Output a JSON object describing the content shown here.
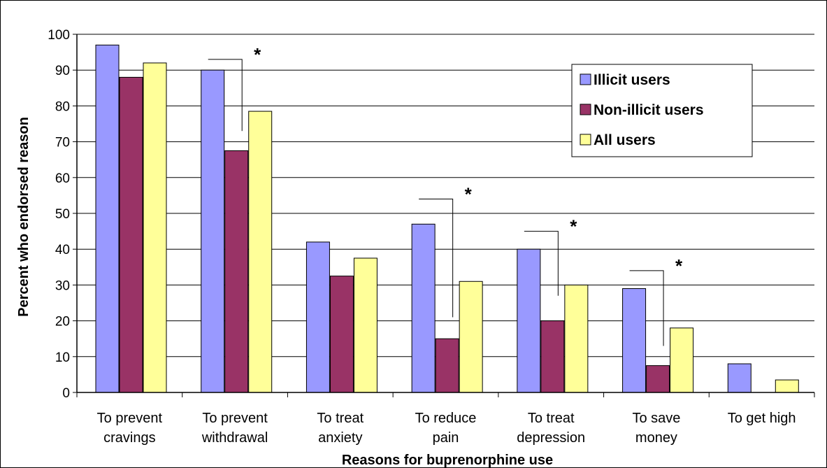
{
  "chart_data": {
    "type": "bar",
    "title": "",
    "xlabel": "Reasons for buprenorphine use",
    "ylabel": "Percent who endorsed reason",
    "ylim": [
      0,
      100
    ],
    "yticks": [
      "0",
      "10",
      "20",
      "30",
      "40",
      "50",
      "60",
      "70",
      "80",
      "90",
      "100"
    ],
    "grid": true,
    "legend_position": "top-right",
    "categories": [
      [
        "To prevent",
        "cravings"
      ],
      [
        "To prevent",
        "withdrawal"
      ],
      [
        "To treat",
        "anxiety"
      ],
      [
        "To reduce",
        "pain"
      ],
      [
        "To treat",
        "depression"
      ],
      [
        "To save",
        "money"
      ],
      [
        "To get high"
      ]
    ],
    "series": [
      {
        "name": "Illicit users",
        "color": "#9999FF",
        "values": [
          97,
          90,
          42,
          47,
          40,
          29,
          8
        ]
      },
      {
        "name": "Non-illicit users",
        "color": "#993366",
        "values": [
          88,
          67.5,
          32.5,
          15,
          20,
          7.5,
          0
        ]
      },
      {
        "name": "All users",
        "color": "#FFFF99",
        "values": [
          92,
          78.5,
          37.5,
          31,
          30,
          18,
          3.5
        ]
      }
    ],
    "annotations": [
      {
        "category_index": 1,
        "text": "*",
        "from_value": 93,
        "to_value": 73
      },
      {
        "category_index": 3,
        "text": "*",
        "from_value": 54,
        "to_value": 21
      },
      {
        "category_index": 4,
        "text": "*",
        "from_value": 45,
        "to_value": 27
      },
      {
        "category_index": 5,
        "text": "*",
        "from_value": 34,
        "to_value": 13
      }
    ]
  }
}
